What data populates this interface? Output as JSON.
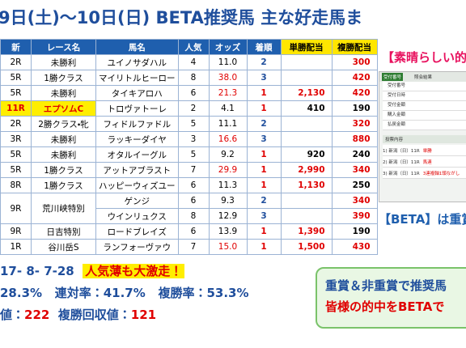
{
  "header": {
    "title": "9日(土)～10日(日)  BETA推奨馬  主な好走馬ま"
  },
  "table": {
    "columns": [
      "新",
      "レース名",
      "馬名",
      "人気",
      "オッズ",
      "着順",
      "単勝配当",
      "複勝配当"
    ],
    "rows": [
      {
        "race": "2R",
        "name": "未勝利",
        "horses": [
          {
            "horse": "ユイノサダハル",
            "pop": 4,
            "odds": "11.0",
            "place": 2,
            "fukusho": "300"
          }
        ]
      },
      {
        "race": "5R",
        "name": "1勝クラス",
        "horses": [
          {
            "horse": "マイリトルヒーロー",
            "pop": 8,
            "odds": "38.0",
            "place": 3,
            "fukusho": "420"
          }
        ]
      },
      {
        "race": "5R",
        "name": "未勝利",
        "horses": [
          {
            "horse": "タイキアロハ",
            "pop": 6,
            "odds": "21.3",
            "place": 1,
            "tansho": "2,130",
            "fukusho": "420"
          }
        ]
      },
      {
        "race": "11R",
        "name": "エプソムC",
        "featured": true,
        "horses": [
          {
            "horse": "トロヴァトーレ",
            "pop": 2,
            "odds": "4.1",
            "place": 1,
            "tansho": "410",
            "fukusho": "190"
          }
        ]
      },
      {
        "race": "2R",
        "name": "2勝クラス・牝",
        "horses": [
          {
            "horse": "フィドルファドル",
            "pop": 5,
            "odds": "11.1",
            "place": 2,
            "fukusho": "320"
          }
        ]
      },
      {
        "race": "3R",
        "name": "未勝利",
        "horses": [
          {
            "horse": "ラッキーダイヤ",
            "pop": 3,
            "odds": "16.6",
            "place": 3,
            "fukusho": "880"
          }
        ]
      },
      {
        "race": "5R",
        "name": "未勝利",
        "horses": [
          {
            "horse": "オタルイーグル",
            "pop": 5,
            "odds": "9.2",
            "place": 1,
            "tansho": "920",
            "fukusho": "240"
          }
        ]
      },
      {
        "race": "5R",
        "name": "1勝クラス",
        "horses": [
          {
            "horse": "アットアブラスト",
            "pop": 7,
            "odds": "29.9",
            "place": 1,
            "tansho": "2,990",
            "fukusho": "340"
          }
        ]
      },
      {
        "race": "8R",
        "name": "1勝クラス",
        "horses": [
          {
            "horse": "ハッピーウィズユー",
            "pop": 6,
            "odds": "11.3",
            "place": 1,
            "tansho": "1,130",
            "fukusho": "250"
          }
        ]
      },
      {
        "race": "9R",
        "name": "荒川峡特別",
        "horses": [
          {
            "horse": "ゲンジ",
            "pop": 6,
            "odds": "9.3",
            "place": 2,
            "fukusho": "340"
          },
          {
            "horse": "ウインリュクス",
            "pop": 8,
            "odds": "12.9",
            "place": 3,
            "fukusho": "390"
          }
        ]
      },
      {
        "race": "9R",
        "name": "日吉特別",
        "horses": [
          {
            "horse": "ロードブレイズ",
            "pop": 6,
            "odds": "13.9",
            "place": 1,
            "tansho": "1,390",
            "fukusho": "190"
          }
        ]
      },
      {
        "race": "1R",
        "name": "谷川岳S",
        "horses": [
          {
            "horse": "ランフォーヴァウ",
            "pop": 7,
            "odds": "15.0",
            "place": 1,
            "tansho": "1,500",
            "fukusho": "430"
          }
        ]
      }
    ]
  },
  "stats": {
    "record": "17- 8- 7-28",
    "badge": "人気薄も大激走！",
    "win_rate": "28.3%",
    "rentai_label": "連対率：",
    "rentai": "41.7%",
    "fukusho_label": "複勝率：",
    "fukusho_rate": "53.3%",
    "tan_label": "値：",
    "tan_value": "222",
    "fuku_label": "複勝回収値：",
    "fuku_value": "121"
  },
  "side": {
    "headline": "【素晴らしい的",
    "receipt": {
      "tab1": "受付番号",
      "tab2": "照会結果",
      "fields": [
        "受付番号",
        "受付日時",
        "受付金額",
        "購入金額",
        "払戻金額"
      ],
      "section": "投票内容",
      "lines": [
        "1) 新潟（日）11R",
        "2) 新潟（日）11R",
        "3) 新潟（日）11R"
      ],
      "kinds": [
        "単勝",
        "馬連",
        "3連複軸1頭ながし"
      ]
    },
    "caption": "【BETA】は重賞"
  },
  "promo": {
    "line1": "重賞＆非重賞で推奨馬",
    "line2": "皆様の的中をBETAで"
  }
}
